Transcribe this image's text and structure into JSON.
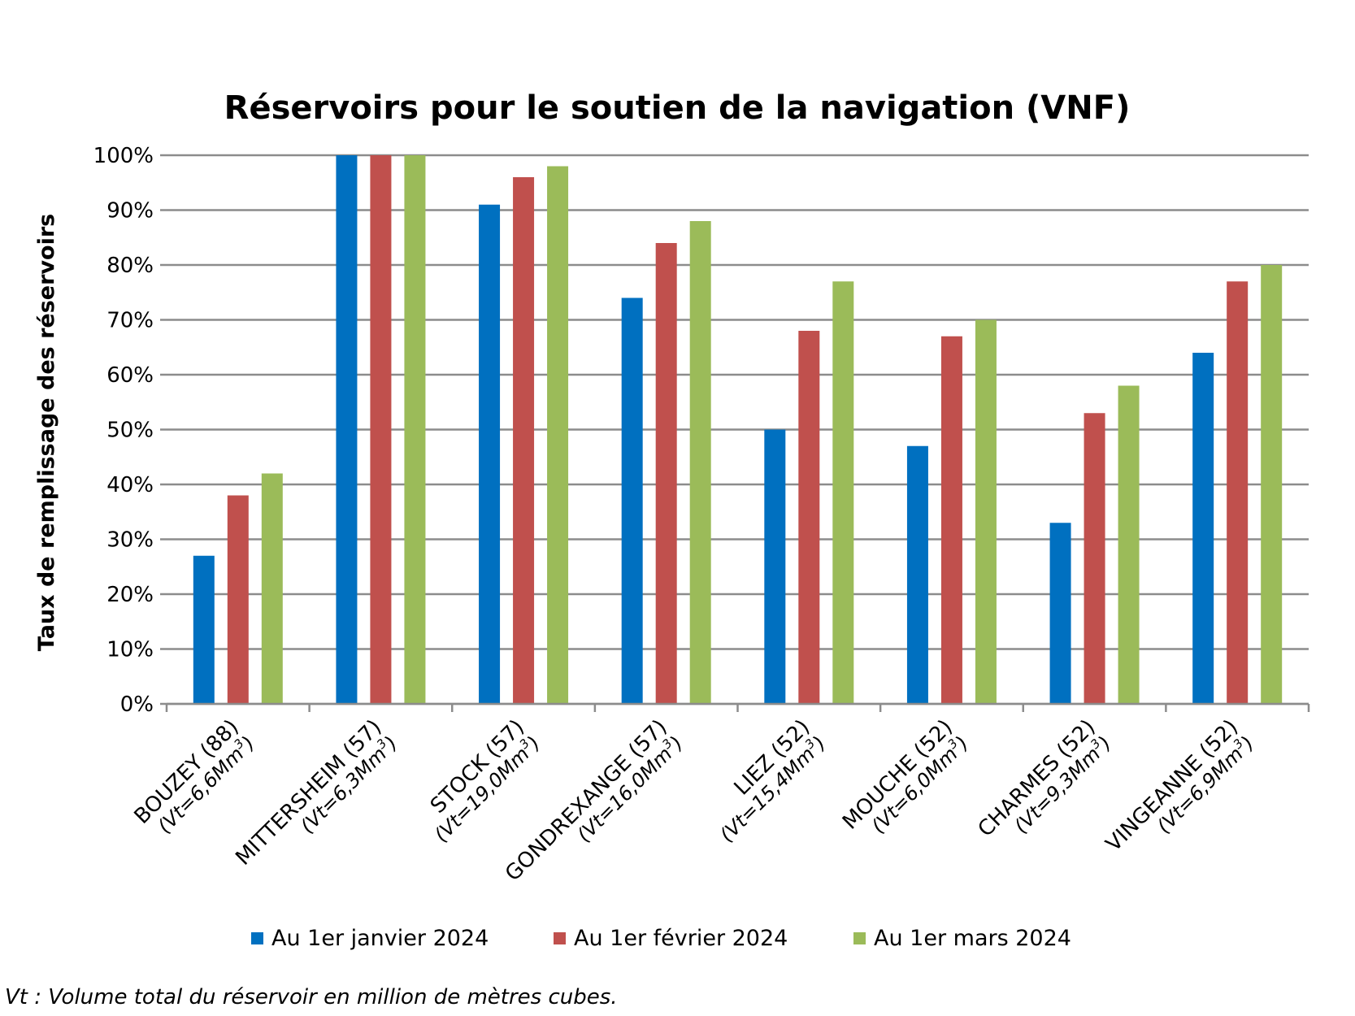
{
  "chart_data": {
    "type": "bar",
    "title": "Réservoirs pour le soutien de la navigation (VNF)",
    "xlabel": "",
    "ylabel": "Taux de remplissage des réservoirs",
    "ylim": [
      0,
      100
    ],
    "yticks": [
      "0%",
      "10%",
      "20%",
      "30%",
      "40%",
      "50%",
      "60%",
      "70%",
      "80%",
      "90%",
      "100%"
    ],
    "grid": true,
    "legend_position": "bottom",
    "categories": [
      {
        "name": "BOUZEY (88)",
        "volume": "(Vt=6,6Mm",
        "sup": "3",
        "close": ")"
      },
      {
        "name": "MITTERSHEIM (57)",
        "volume": "(Vt=6,3Mm",
        "sup": "3",
        "close": ")"
      },
      {
        "name": "STOCK (57)",
        "volume": "(Vt=19,0Mm",
        "sup": "3",
        "close": ")"
      },
      {
        "name": "GONDREXANGE (57)",
        "volume": "(Vt=16,0Mm",
        "sup": "3",
        "close": ")"
      },
      {
        "name": "LIEZ (52)",
        "volume": "(Vt=15,4Mm",
        "sup": "3",
        "close": ")"
      },
      {
        "name": "MOUCHE (52)",
        "volume": "(Vt=6,0Mm",
        "sup": "3",
        "close": ")"
      },
      {
        "name": "CHARMES (52)",
        "volume": "(Vt=9,3Mm",
        "sup": "3",
        "close": ")"
      },
      {
        "name": "VINGEANNE (52)",
        "volume": "(Vt=6,9Mm",
        "sup": "3",
        "close": ")"
      }
    ],
    "series": [
      {
        "name": "Au 1er janvier 2024",
        "color": "#0070C0",
        "values": [
          27,
          100,
          91,
          74,
          50,
          47,
          33,
          64
        ]
      },
      {
        "name": "Au 1er février 2024",
        "color": "#C0504D",
        "values": [
          38,
          100,
          96,
          84,
          68,
          67,
          53,
          77
        ]
      },
      {
        "name": "Au 1er mars 2024",
        "color": "#9BBB59",
        "values": [
          42,
          100,
          98,
          88,
          77,
          70,
          58,
          80
        ]
      }
    ]
  },
  "footnote": "Vt : Volume total du réservoir en million de mètres cubes."
}
